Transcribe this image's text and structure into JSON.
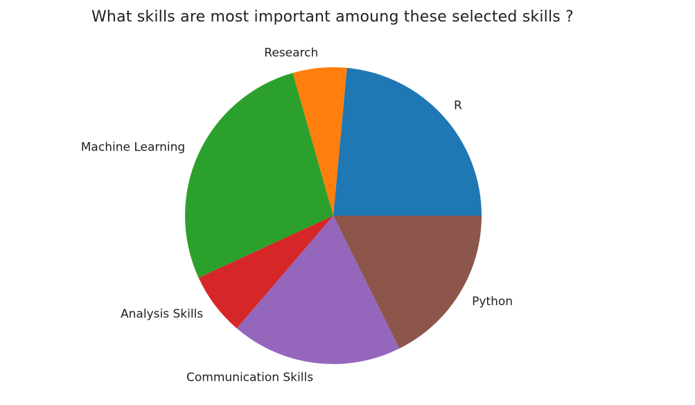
{
  "chart_data": {
    "type": "pie",
    "title": "What skills are most important amoung these selected skills ?",
    "categories": [
      "R",
      "Research",
      "Machine Learning",
      "Analysis Skills",
      "Communication Skills",
      "Python"
    ],
    "values": [
      24,
      6,
      28,
      7,
      19,
      18
    ],
    "colors": [
      "#1f77b4",
      "#ff7f0e",
      "#2ca02c",
      "#d62728",
      "#9467bd",
      "#8c564b"
    ],
    "start_angle_deg": 0,
    "direction": "counterclockwise",
    "legend": "none"
  }
}
